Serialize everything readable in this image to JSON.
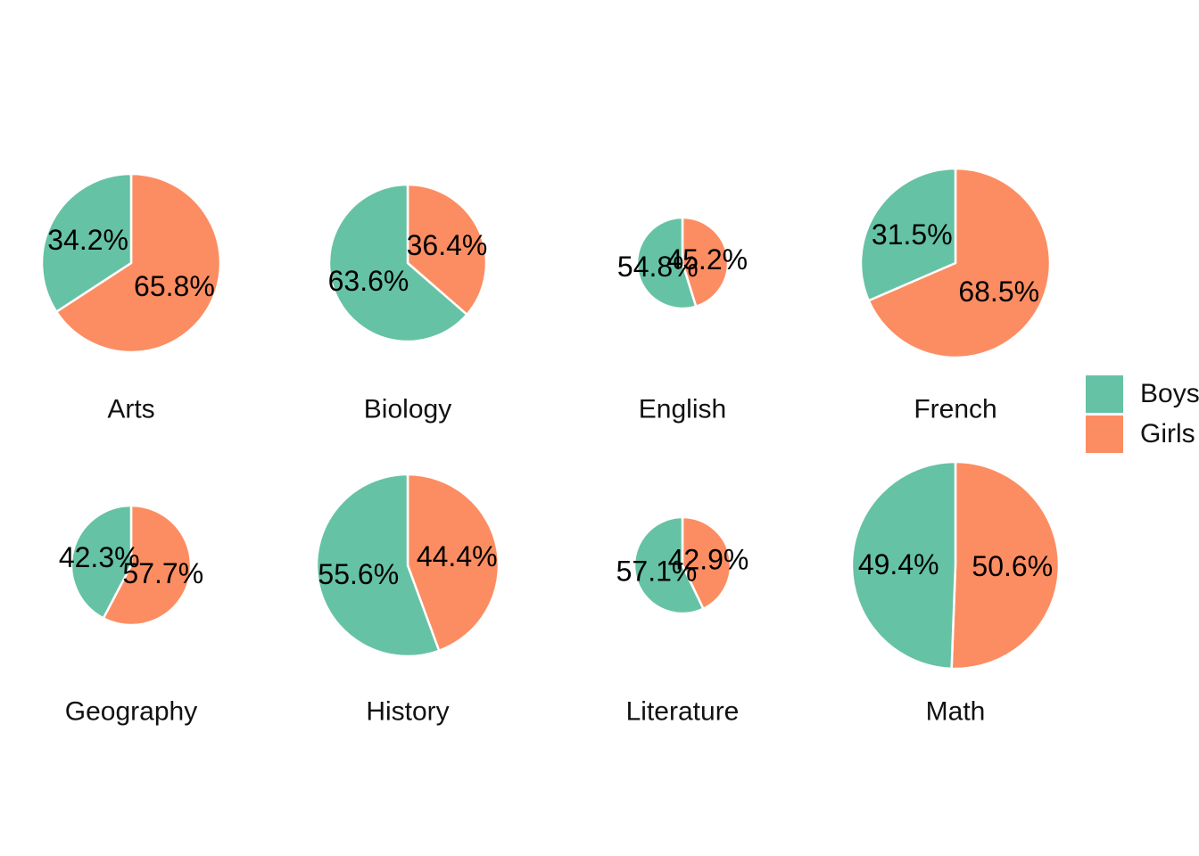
{
  "page": {
    "background_color": "#ffffff",
    "text_color": "#000000"
  },
  "chart_data": {
    "type": "pie",
    "title": "",
    "facet_by": "subject",
    "values_unit": "%",
    "slice_order_clockwise_from_top": [
      "Girls",
      "Boys"
    ],
    "pie_area_note": "pie radius varies per facet",
    "legend": {
      "position": "right",
      "entries": [
        {
          "label": "Boys",
          "color": "#66c2a5"
        },
        {
          "label": "Girls",
          "color": "#fc8d62"
        }
      ]
    },
    "pies": [
      {
        "category": "Arts",
        "row": 0,
        "col": 0,
        "radius_px": 100,
        "slices": [
          {
            "name": "Boys",
            "pct": 34.2,
            "label": "34.2%"
          },
          {
            "name": "Girls",
            "pct": 65.8,
            "label": "65.8%"
          }
        ]
      },
      {
        "category": "Biology",
        "row": 0,
        "col": 1,
        "radius_px": 88,
        "slices": [
          {
            "name": "Boys",
            "pct": 63.6,
            "label": "63.6%"
          },
          {
            "name": "Girls",
            "pct": 36.4,
            "label": "36.4%"
          }
        ]
      },
      {
        "category": "English",
        "row": 0,
        "col": 2,
        "radius_px": 51,
        "slices": [
          {
            "name": "Boys",
            "pct": 54.8,
            "label": "54.8%"
          },
          {
            "name": "Girls",
            "pct": 45.2,
            "label": "45.2%"
          }
        ]
      },
      {
        "category": "French",
        "row": 0,
        "col": 3,
        "radius_px": 106,
        "slices": [
          {
            "name": "Boys",
            "pct": 31.5,
            "label": "31.5%"
          },
          {
            "name": "Girls",
            "pct": 68.5,
            "label": "68.5%"
          }
        ]
      },
      {
        "category": "Geography",
        "row": 1,
        "col": 0,
        "radius_px": 67,
        "slices": [
          {
            "name": "Boys",
            "pct": 42.3,
            "label": "42.3%"
          },
          {
            "name": "Girls",
            "pct": 57.7,
            "label": "57.7%"
          }
        ]
      },
      {
        "category": "History",
        "row": 1,
        "col": 1,
        "radius_px": 102,
        "slices": [
          {
            "name": "Boys",
            "pct": 55.6,
            "label": "55.6%"
          },
          {
            "name": "Girls",
            "pct": 44.4,
            "label": "44.4%"
          }
        ]
      },
      {
        "category": "Literature",
        "row": 1,
        "col": 2,
        "radius_px": 54,
        "slices": [
          {
            "name": "Boys",
            "pct": 57.1,
            "label": "57.1%"
          },
          {
            "name": "Girls",
            "pct": 42.9,
            "label": "42.9%"
          }
        ]
      },
      {
        "category": "Math",
        "row": 1,
        "col": 3,
        "radius_px": 116,
        "slices": [
          {
            "name": "Boys",
            "pct": 49.4,
            "label": "49.4%"
          },
          {
            "name": "Girls",
            "pct": 50.6,
            "label": "50.6%"
          }
        ]
      }
    ]
  }
}
